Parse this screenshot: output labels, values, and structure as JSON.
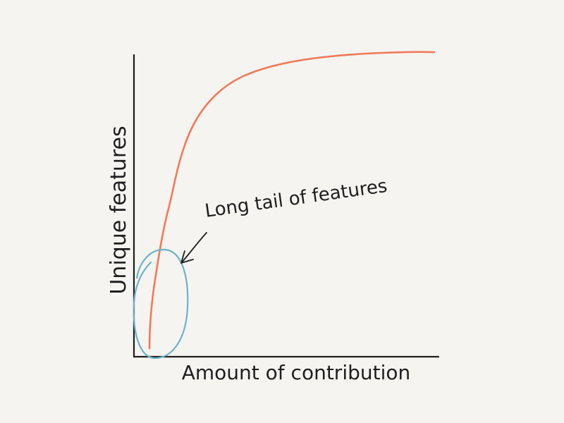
{
  "chart_data": {
    "type": "line",
    "title": "",
    "xlabel": "Amount of contribution",
    "ylabel": "Unique features",
    "axis_ticks": false,
    "grid": false,
    "annotation": {
      "text": "Long tail of features",
      "target": "ellipse around the low-contribution region"
    },
    "series": [
      {
        "color": "#f07a5a",
        "shape": "rises steeply at low contribution, then flattens into a plateau"
      }
    ]
  },
  "colors": {
    "background": "#f5f4f1",
    "axis": "#1e1e1e",
    "curve": "#f07a5a",
    "highlight": "#6fb3c6",
    "text": "#1e1e1e"
  }
}
